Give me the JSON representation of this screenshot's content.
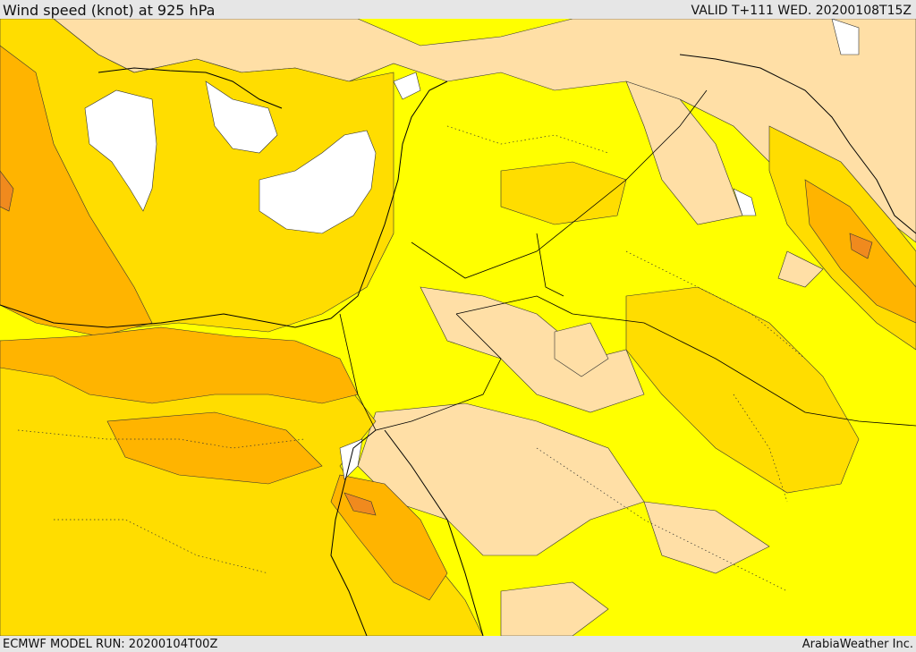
{
  "header": {
    "title": "Wind speed (knot) at 925 hPa",
    "valid": "VALID T+111 WED. 20200108T15Z"
  },
  "footer": {
    "model_run": "ECMWF MODEL RUN: 20200104T00Z",
    "credit": "ArabiaWeather Inc."
  },
  "map": {
    "region": "Eastern Mediterranean / Levant / Arabian Peninsula",
    "colors": {
      "calm": "#ffffff",
      "light": "#ffdfa6",
      "moderate": "#ffff00",
      "fresh": "#ffdd00",
      "strong": "#ffb400",
      "very_strong": "#f08a1e",
      "border": "#000000"
    }
  }
}
